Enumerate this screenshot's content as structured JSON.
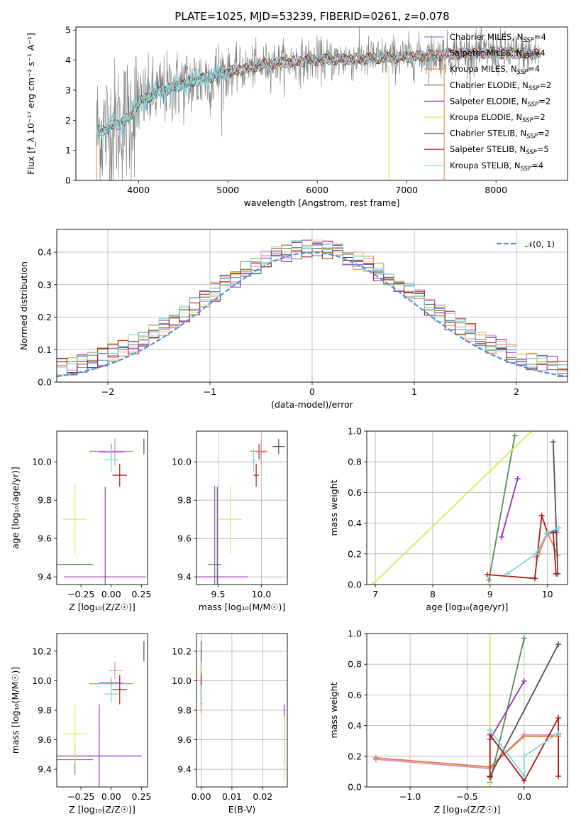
{
  "figure": {
    "title": "PLATE=1025, MJD=53239, FIBERID=0261, z=0.078"
  },
  "colors": {
    "chabrier_miles": "#6a8fe0",
    "salpeter_miles": "#e08ac8",
    "kroupa_miles": "#e8843a",
    "chabrier_elodie": "#5a8a5a",
    "salpeter_elodie": "#9a30b8",
    "kroupa_elodie": "#d4ec56",
    "chabrier_stelib": "#505050",
    "salpeter_stelib": "#b01818",
    "kroupa_stelib": "#78d8e0",
    "gaussian": "#5a8fd6",
    "data": "#7a7a7a"
  },
  "chart_data": [
    {
      "id": "spectrum",
      "type": "line",
      "title": "PLATE=1025, MJD=53239, FIBERID=0261, z=0.078",
      "xlabel": "wavelength [Angstrom, rest frame]",
      "ylabel": "Flux [f_λ 10⁻¹⁷ erg cm⁻² s⁻¹ A⁻¹]",
      "xlim": [
        3300,
        8800
      ],
      "ylim": [
        0,
        5.1
      ],
      "xticks": [
        4000,
        5000,
        6000,
        7000,
        8000
      ],
      "yticks": [
        0,
        1,
        2,
        3,
        4,
        5
      ],
      "legend_position": "upper-right",
      "legend": [
        {
          "label": "Chabrier MILES, N",
          "sub": "SSP",
          "suffix": "=4",
          "key": "chabrier_miles"
        },
        {
          "label": "Salpeter MILES, N",
          "sub": "SSP",
          "suffix": "=4",
          "key": "salpeter_miles"
        },
        {
          "label": "Kroupa MILES, N",
          "sub": "SSP",
          "suffix": "=4",
          "key": "kroupa_miles"
        },
        {
          "label": "Chabrier ELODIE, N",
          "sub": "SSP",
          "suffix": "=2",
          "key": "chabrier_elodie"
        },
        {
          "label": "Salpeter ELODIE, N",
          "sub": "SSP",
          "suffix": "=2",
          "key": "salpeter_elodie"
        },
        {
          "label": "Kroupa ELODIE, N",
          "sub": "SSP",
          "suffix": "=2",
          "key": "kroupa_elodie"
        },
        {
          "label": "Chabrier STELIB, N",
          "sub": "SSP",
          "suffix": "=2",
          "key": "chabrier_stelib"
        },
        {
          "label": "Salpeter STELIB, N",
          "sub": "SSP",
          "suffix": "=5",
          "key": "salpeter_stelib"
        },
        {
          "label": "Kroupa STELIB, N",
          "sub": "SSP",
          "suffix": "=4",
          "key": "kroupa_stelib"
        }
      ],
      "continuum": {
        "x": [
          3530,
          3700,
          3800,
          3900,
          4000,
          4200,
          4500,
          5000,
          5500,
          6000,
          6500,
          7000,
          7500,
          8000,
          8500
        ],
        "y": [
          1.6,
          1.8,
          1.9,
          2.1,
          2.6,
          2.9,
          3.2,
          3.6,
          3.9,
          4.0,
          4.05,
          4.1,
          4.2,
          4.25,
          4.2
        ]
      }
    },
    {
      "id": "residuals",
      "type": "histogram",
      "xlabel": "(data-model)/error",
      "ylabel": "Normed distribution",
      "xlim": [
        -2.5,
        2.5
      ],
      "ylim": [
        0,
        0.47
      ],
      "xticks": [
        -2,
        -1,
        0,
        1,
        2
      ],
      "yticks": [
        0.0,
        0.1,
        0.2,
        0.3,
        0.4
      ],
      "grid": true,
      "legend_position": "upper-right",
      "legend": [
        {
          "label": "𝒩(0, 1)",
          "key": "gaussian",
          "style": "dashed"
        }
      ],
      "bin_width": 0.1
    },
    {
      "id": "age_vs_Z",
      "type": "errorbar",
      "xlabel": "Z [log₁₀(Z/Z☉)]",
      "ylabel": "age  [log₁₀(age/yr)]",
      "xlim": [
        -0.45,
        0.3
      ],
      "ylim": [
        9.36,
        10.16
      ],
      "xticks": [
        -0.25,
        0.0,
        0.25
      ],
      "yticks": [
        9.4,
        9.6,
        9.8,
        10.0
      ],
      "grid": false,
      "points": [
        {
          "key": "chabrier_miles",
          "x": 0.0,
          "y": 10.05,
          "dx": 0.1,
          "dy": 0.04
        },
        {
          "key": "salpeter_miles",
          "x": 0.03,
          "y": 10.05,
          "dx": 0.08,
          "dy": 0.07
        },
        {
          "key": "kroupa_miles",
          "x": 0.0,
          "y": 10.055,
          "dx": 0.18,
          "dy": 0.04
        },
        {
          "key": "chabrier_elodie",
          "x": -0.3,
          "y": 9.465,
          "dx": 0.15,
          "dy": 0.0
        },
        {
          "key": "salpeter_elodie",
          "x": -0.05,
          "y": 9.4,
          "dx": 0.34,
          "dy": 0.47
        },
        {
          "key": "kroupa_elodie",
          "x": -0.3,
          "y": 9.7,
          "dx": 0.1,
          "dy": 0.18
        },
        {
          "key": "chabrier_stelib",
          "x": 0.27,
          "y": 10.08,
          "dx": 0.0,
          "dy": 0.04
        },
        {
          "key": "salpeter_stelib",
          "x": 0.07,
          "y": 9.93,
          "dx": 0.06,
          "dy": 0.06
        },
        {
          "key": "kroupa_stelib",
          "x": 0.0,
          "y": 10.01,
          "dx": 0.06,
          "dy": 0.06
        }
      ]
    },
    {
      "id": "age_vs_mass",
      "type": "errorbar",
      "xlabel": "mass [log₁₀(M/M☉)]",
      "ylabel": "",
      "xlim": [
        9.25,
        10.3
      ],
      "ylim": [
        9.36,
        10.16
      ],
      "xticks": [
        9.5,
        10.0
      ],
      "yticks": [
        9.4,
        9.6,
        9.8,
        10.0
      ],
      "grid": true,
      "points": [
        {
          "key": "chabrier_miles",
          "x": 9.98,
          "y": 10.05,
          "dx": 0.02,
          "dy": 0.04
        },
        {
          "key": "salpeter_miles",
          "x": 10.0,
          "y": 10.05,
          "dx": 0.05,
          "dy": 0.07
        },
        {
          "key": "kroupa_miles",
          "x": 9.97,
          "y": 10.055,
          "dx": 0.1,
          "dy": 0.04
        },
        {
          "key": "chabrier_elodie",
          "x": 9.46,
          "y": 9.465,
          "dx": 0.08,
          "dy": 0.41
        },
        {
          "key": "salpeter_elodie",
          "x": 9.49,
          "y": 9.4,
          "dx": 0.36,
          "dy": 0.47
        },
        {
          "key": "kroupa_elodie",
          "x": 9.64,
          "y": 9.7,
          "dx": 0.14,
          "dy": 0.18
        },
        {
          "key": "chabrier_stelib",
          "x": 10.2,
          "y": 10.08,
          "dx": 0.07,
          "dy": 0.04
        },
        {
          "key": "salpeter_stelib",
          "x": 9.94,
          "y": 9.93,
          "dx": 0.03,
          "dy": 0.06
        },
        {
          "key": "kroupa_stelib",
          "x": 9.91,
          "y": 10.01,
          "dx": 0.02,
          "dy": 0.06
        }
      ]
    },
    {
      "id": "weight_vs_age",
      "type": "line",
      "xlabel": "age  [log₁₀(age/yr)]",
      "ylabel": "mass weight",
      "xlim": [
        6.85,
        10.35
      ],
      "ylim": [
        0,
        1.0
      ],
      "xticks": [
        7,
        8,
        9,
        10
      ],
      "yticks": [
        0.0,
        0.2,
        0.4,
        0.6,
        0.8,
        1.0
      ],
      "grid": true,
      "series": [
        {
          "key": "chabrier_miles",
          "x": [
            9.8,
            10.0,
            10.15
          ],
          "y": [
            0.2,
            0.33,
            0.35
          ]
        },
        {
          "key": "salpeter_miles",
          "x": [
            9.8,
            10.0,
            10.18
          ],
          "y": [
            0.18,
            0.33,
            0.34
          ]
        },
        {
          "key": "kroupa_miles",
          "x": [
            9.85,
            10.0,
            10.18
          ],
          "y": [
            0.2,
            0.34,
            0.19
          ]
        },
        {
          "key": "chabrier_elodie",
          "x": [
            8.98,
            9.43
          ],
          "y": [
            0.03,
            0.97
          ]
        },
        {
          "key": "salpeter_elodie",
          "x": [
            9.2,
            9.48
          ],
          "y": [
            0.31,
            0.69
          ]
        },
        {
          "key": "kroupa_elodie",
          "x": [
            6.95,
            9.72
          ],
          "y": [
            0.0,
            1.0
          ]
        },
        {
          "key": "chabrier_stelib",
          "x": [
            10.1,
            10.18
          ],
          "y": [
            0.93,
            0.07
          ]
        },
        {
          "key": "salpeter_stelib",
          "x": [
            8.95,
            9.78,
            9.9,
            10.0,
            10.1,
            10.15
          ],
          "y": [
            0.065,
            0.04,
            0.45,
            0.34,
            0.34,
            0.07
          ]
        },
        {
          "key": "kroupa_stelib",
          "x": [
            9.3,
            9.8,
            10.0,
            10.2
          ],
          "y": [
            0.07,
            0.2,
            0.34,
            0.37
          ]
        }
      ]
    },
    {
      "id": "mass_vs_Z",
      "type": "errorbar",
      "xlabel": "Z [log₁₀(Z/Z☉)]",
      "ylabel": "mass [log₁₀(M/M☉)]",
      "xlim": [
        -0.45,
        0.3
      ],
      "ylim": [
        9.28,
        10.32
      ],
      "xticks": [
        -0.25,
        0.0,
        0.25
      ],
      "yticks": [
        9.4,
        9.6,
        9.8,
        10.0,
        10.2
      ],
      "grid": false,
      "points": [
        {
          "key": "chabrier_miles",
          "x": 0.0,
          "y": 9.99,
          "dx": 0.1,
          "dy": 0.01
        },
        {
          "key": "salpeter_miles",
          "x": 0.03,
          "y": 10.07,
          "dx": 0.06,
          "dy": 0.06
        },
        {
          "key": "kroupa_miles",
          "x": 0.0,
          "y": 9.98,
          "dx": 0.18,
          "dy": 0.04
        },
        {
          "key": "chabrier_elodie",
          "x": -0.3,
          "y": 9.465,
          "dx": 0.15,
          "dy": 0.1
        },
        {
          "key": "salpeter_elodie",
          "x": -0.1,
          "y": 9.49,
          "dx": 0.35,
          "dy": 0.35
        },
        {
          "key": "kroupa_elodie",
          "x": -0.3,
          "y": 9.64,
          "dx": 0.1,
          "dy": 0.2
        },
        {
          "key": "chabrier_stelib",
          "x": 0.27,
          "y": 10.2,
          "dx": 0.0,
          "dy": 0.07
        },
        {
          "key": "salpeter_stelib",
          "x": 0.07,
          "y": 9.94,
          "dx": 0.06,
          "dy": 0.1
        },
        {
          "key": "kroupa_stelib",
          "x": 0.0,
          "y": 9.91,
          "dx": 0.06,
          "dy": 0.06
        }
      ]
    },
    {
      "id": "mass_vs_ebv",
      "type": "errorbar",
      "xlabel": "E(B-V)",
      "ylabel": "",
      "xlim": [
        -0.0015,
        0.028
      ],
      "ylim": [
        9.28,
        10.32
      ],
      "xticks": [
        0.0,
        0.01,
        0.02
      ],
      "yticks": [
        9.4,
        9.6,
        9.8,
        10.0,
        10.2
      ],
      "grid": true,
      "points": [
        {
          "key": "chabrier_miles",
          "x": 0.0,
          "y": 9.99,
          "dx": 0.0,
          "dy": 0.01
        },
        {
          "key": "salpeter_miles",
          "x": 0.0,
          "y": 10.07,
          "dx": 0.0,
          "dy": 0.06
        },
        {
          "key": "kroupa_miles",
          "x": 0.0,
          "y": 9.98,
          "dx": 0.0,
          "dy": 0.2
        },
        {
          "key": "chabrier_elodie",
          "x": 0.0,
          "y": 9.96,
          "dx": 0.0,
          "dy": 0.1
        },
        {
          "key": "salpeter_elodie",
          "x": 0.027,
          "y": 9.64,
          "dx": 0.0,
          "dy": 0.2
        },
        {
          "key": "kroupa_elodie",
          "x": 0.027,
          "y": 9.54,
          "dx": 0.0,
          "dy": 0.22
        },
        {
          "key": "chabrier_stelib",
          "x": 0.0,
          "y": 10.2,
          "dx": 0.0,
          "dy": 0.07
        },
        {
          "key": "salpeter_stelib",
          "x": 0.0,
          "y": 9.94,
          "dx": 0.0,
          "dy": 0.1
        },
        {
          "key": "kroupa_stelib",
          "x": 0.0,
          "y": 9.91,
          "dx": 0.0,
          "dy": 0.06
        }
      ]
    },
    {
      "id": "weight_vs_Z",
      "type": "line",
      "xlabel": "Z [log₁₀(Z/Z☉)]",
      "ylabel": "mass weight",
      "xlim": [
        -1.38,
        0.38
      ],
      "ylim": [
        0,
        1.0
      ],
      "xticks": [
        -1.0,
        -0.5,
        0.0
      ],
      "yticks": [
        0.0,
        0.2,
        0.4,
        0.6,
        0.8,
        1.0
      ],
      "grid": true,
      "series": [
        {
          "key": "chabrier_miles",
          "x": [
            -1.3,
            -0.3,
            0.0,
            0.3
          ],
          "y": [
            0.19,
            0.13,
            0.34,
            0.34
          ]
        },
        {
          "key": "salpeter_miles",
          "x": [
            -1.3,
            -0.3,
            0.0,
            0.3
          ],
          "y": [
            0.18,
            0.12,
            0.34,
            0.34
          ]
        },
        {
          "key": "kroupa_miles",
          "x": [
            -1.3,
            -0.3,
            0.0,
            0.3
          ],
          "y": [
            0.19,
            0.13,
            0.33,
            0.33
          ]
        },
        {
          "key": "chabrier_elodie",
          "x": [
            -0.3,
            0.0
          ],
          "y": [
            0.03,
            0.97
          ]
        },
        {
          "key": "salpeter_elodie",
          "x": [
            -0.3,
            0.0
          ],
          "y": [
            0.31,
            0.69
          ]
        },
        {
          "key": "kroupa_elodie",
          "x": [
            -0.3,
            -0.3
          ],
          "y": [
            0.0,
            1.0
          ]
        },
        {
          "key": "chabrier_stelib",
          "x": [
            -0.3,
            0.3
          ],
          "y": [
            0.07,
            0.93
          ]
        },
        {
          "key": "salpeter_stelib",
          "x": [
            -0.3,
            -0.3,
            0.0,
            0.3,
            0.3
          ],
          "y": [
            0.065,
            0.34,
            0.04,
            0.45,
            0.07
          ]
        },
        {
          "key": "kroupa_stelib",
          "x": [
            -0.3,
            0.0,
            0.0,
            0.3
          ],
          "y": [
            0.37,
            0.07,
            0.2,
            0.35
          ]
        }
      ]
    }
  ]
}
